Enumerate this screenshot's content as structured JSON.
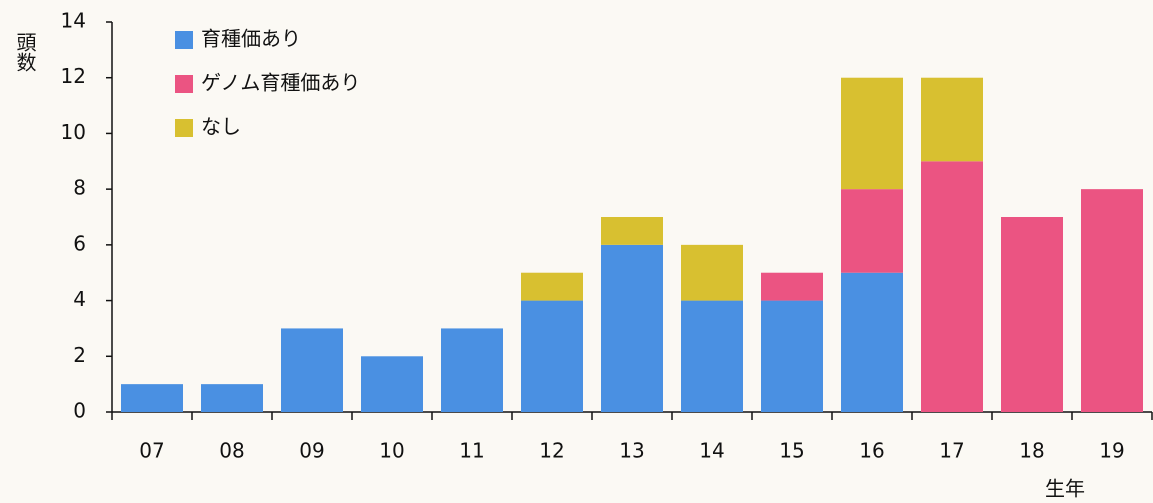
{
  "chart_data": {
    "type": "stacked_bar",
    "y_label": "頭数",
    "x_label": "生年",
    "categories": [
      "07",
      "08",
      "09",
      "10",
      "11",
      "12",
      "13",
      "14",
      "15",
      "16",
      "17",
      "18",
      "19"
    ],
    "series": [
      {
        "name": "育種価あり",
        "color": "#4a90e2",
        "values": [
          1,
          1,
          3,
          2,
          3,
          4,
          6,
          4,
          4,
          5,
          0,
          0,
          0
        ]
      },
      {
        "name": "ゲノム育種価あり",
        "color": "#eb5482",
        "values": [
          0,
          0,
          0,
          0,
          0,
          0,
          0,
          0,
          1,
          3,
          9,
          7,
          8
        ]
      },
      {
        "name": "なし",
        "color": "#d8c030",
        "values": [
          0,
          0,
          0,
          0,
          0,
          1,
          1,
          2,
          0,
          4,
          3,
          0,
          0
        ]
      }
    ],
    "ylim": [
      0,
      14
    ],
    "yticks": [
      0,
      2,
      4,
      6,
      8,
      10,
      12,
      14
    ],
    "legend": "top-left"
  }
}
